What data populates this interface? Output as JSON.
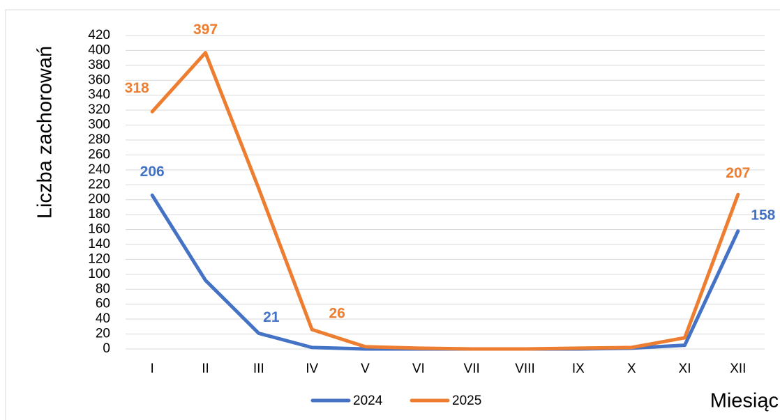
{
  "chart_data": {
    "type": "line",
    "y_label": "Liczba zachorowań",
    "x_label": "Miesiąc",
    "categories": [
      "I",
      "II",
      "III",
      "IV",
      "V",
      "VI",
      "VII",
      "VIII",
      "IX",
      "X",
      "XI",
      "XII"
    ],
    "series": [
      {
        "name": "2024",
        "color": "#4472c4",
        "values": [
          206,
          92,
          21,
          2,
          0,
          0,
          0,
          0,
          0,
          1,
          5,
          158
        ],
        "value_labels": [
          206,
          null,
          21,
          null,
          null,
          null,
          null,
          null,
          null,
          null,
          null,
          158
        ]
      },
      {
        "name": "2025",
        "color": "#ed7d31",
        "values": [
          318,
          397,
          215,
          26,
          3,
          1,
          0,
          0,
          1,
          2,
          15,
          207
        ],
        "value_labels": [
          318,
          397,
          null,
          26,
          null,
          null,
          null,
          null,
          null,
          null,
          null,
          207
        ]
      }
    ],
    "ylim": [
      0,
      420
    ],
    "yticks": [
      0,
      20,
      40,
      60,
      80,
      100,
      120,
      140,
      160,
      180,
      200,
      220,
      240,
      260,
      280,
      300,
      320,
      340,
      360,
      380,
      400,
      420
    ],
    "grid": true,
    "legend": "bottom"
  }
}
